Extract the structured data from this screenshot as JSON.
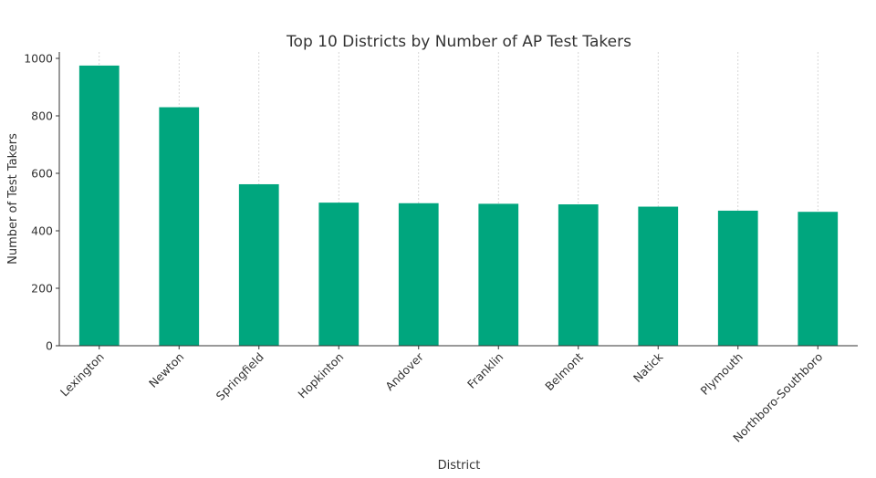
{
  "chart_data": {
    "type": "bar",
    "title": "Top 10 Districts by Number of AP Test Takers",
    "xlabel": "District",
    "ylabel": "Number of Test Takers",
    "categories": [
      "Lexington",
      "Newton",
      "Springfield",
      "Hopkinton",
      "Andover",
      "Franklin",
      "Belmont",
      "Natick",
      "Plymouth",
      "Northboro-Southboro"
    ],
    "values": [
      975,
      830,
      562,
      498,
      496,
      494,
      492,
      484,
      470,
      466
    ],
    "ylim": [
      0,
      1000
    ],
    "yticks": [
      0,
      200,
      400,
      600,
      800,
      1000
    ],
    "grid": "vertical",
    "colors": {
      "bar": "#00a67e",
      "grid": "#cccccc",
      "axis": "#333333"
    }
  }
}
